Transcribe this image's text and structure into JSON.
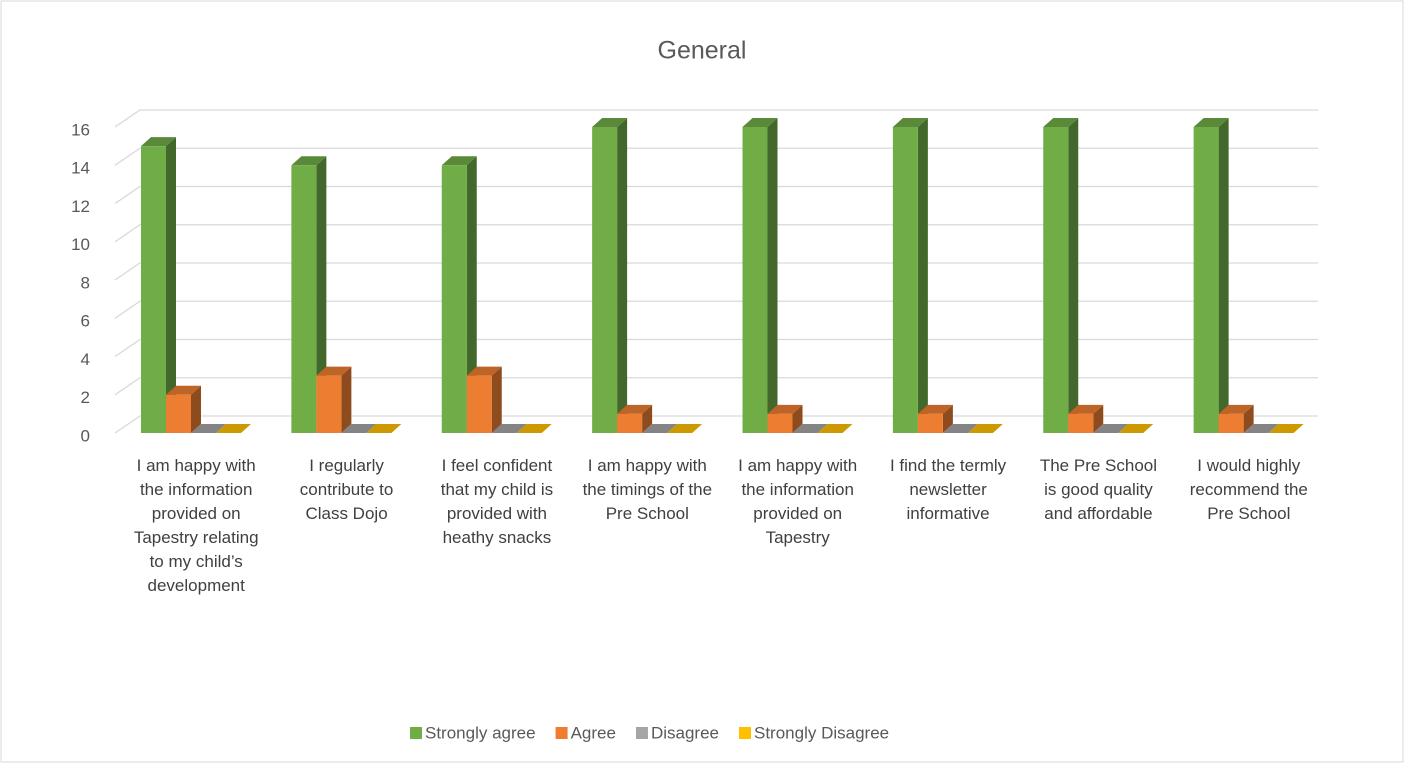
{
  "chart_data": {
    "type": "bar",
    "title": "General",
    "categories": [
      "I am happy with the information provided on Tapestry relating to my child’s development",
      "I regularly contribute to Class Dojo",
      "I feel confident that my child is provided with heathy snacks",
      "I am happy with the timings of the Pre School",
      "I am happy with the information provided on Tapestry",
      "I find the termly newsletter informative",
      "The Pre School is good quality and affordable",
      "I would highly recommend the Pre School"
    ],
    "series": [
      {
        "name": "Strongly agree",
        "color": "#70ad47",
        "values": [
          15,
          14,
          14,
          16,
          16,
          16,
          16,
          16
        ]
      },
      {
        "name": "Agree",
        "color": "#ed7d31",
        "values": [
          2,
          3,
          3,
          1,
          1,
          1,
          1,
          1
        ]
      },
      {
        "name": "Disagree",
        "color": "#a5a5a5",
        "values": [
          0,
          0,
          0,
          0,
          0,
          0,
          0,
          0
        ]
      },
      {
        "name": "Strongly Disagree",
        "color": "#ffc000",
        "values": [
          0,
          0,
          0,
          0,
          0,
          0,
          0,
          0
        ]
      }
    ],
    "ylim": [
      0,
      16
    ],
    "yticks": [
      0,
      2,
      4,
      6,
      8,
      10,
      12,
      14,
      16
    ],
    "grid": true,
    "legend": "bottom"
  }
}
